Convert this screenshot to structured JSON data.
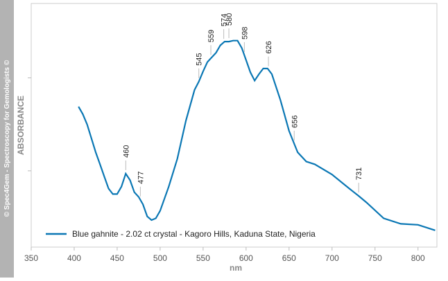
{
  "chart_data": {
    "type": "line",
    "y_label": "ABSORBANCE",
    "x_label": "nm",
    "side_note": "© Spec4Gem - Spectroscopy for Gemologists ©",
    "x": [
      405,
      410,
      415,
      420,
      425,
      430,
      435,
      440,
      445,
      450,
      455,
      460,
      465,
      470,
      475,
      480,
      485,
      490,
      495,
      500,
      510,
      520,
      530,
      540,
      545,
      550,
      555,
      560,
      565,
      570,
      575,
      580,
      585,
      590,
      595,
      600,
      605,
      610,
      615,
      620,
      625,
      630,
      640,
      650,
      656,
      660,
      670,
      680,
      700,
      720,
      731,
      740,
      760,
      780,
      800,
      820
    ],
    "series": [
      {
        "name": "Blue gahnite - 2.02 ct crystal - Kagoro Hills, Kaduna State, Nigeria",
        "color": "#0a77b4",
        "values": [
          1.69,
          1.61,
          1.5,
          1.35,
          1.2,
          1.07,
          0.94,
          0.81,
          0.75,
          0.75,
          0.83,
          0.97,
          0.9,
          0.77,
          0.72,
          0.64,
          0.51,
          0.47,
          0.49,
          0.57,
          0.83,
          1.13,
          1.54,
          1.87,
          1.96,
          2.07,
          2.17,
          2.22,
          2.27,
          2.35,
          2.39,
          2.39,
          2.4,
          2.4,
          2.32,
          2.19,
          2.06,
          1.97,
          2.04,
          2.1,
          2.1,
          2.04,
          1.76,
          1.43,
          1.29,
          1.2,
          1.1,
          1.07,
          0.96,
          0.81,
          0.73,
          0.66,
          0.49,
          0.43,
          0.42,
          0.36
        ]
      }
    ],
    "annotations": [
      460,
      477,
      545,
      559,
      574,
      580,
      598,
      626,
      656,
      731
    ],
    "xlim": [
      350,
      822
    ],
    "xticks": [
      350,
      400,
      450,
      500,
      550,
      600,
      650,
      700,
      750,
      800
    ],
    "ylim": [
      0.18,
      2.8
    ],
    "yticks": [
      1,
      2
    ],
    "legend": "bottom-left"
  }
}
